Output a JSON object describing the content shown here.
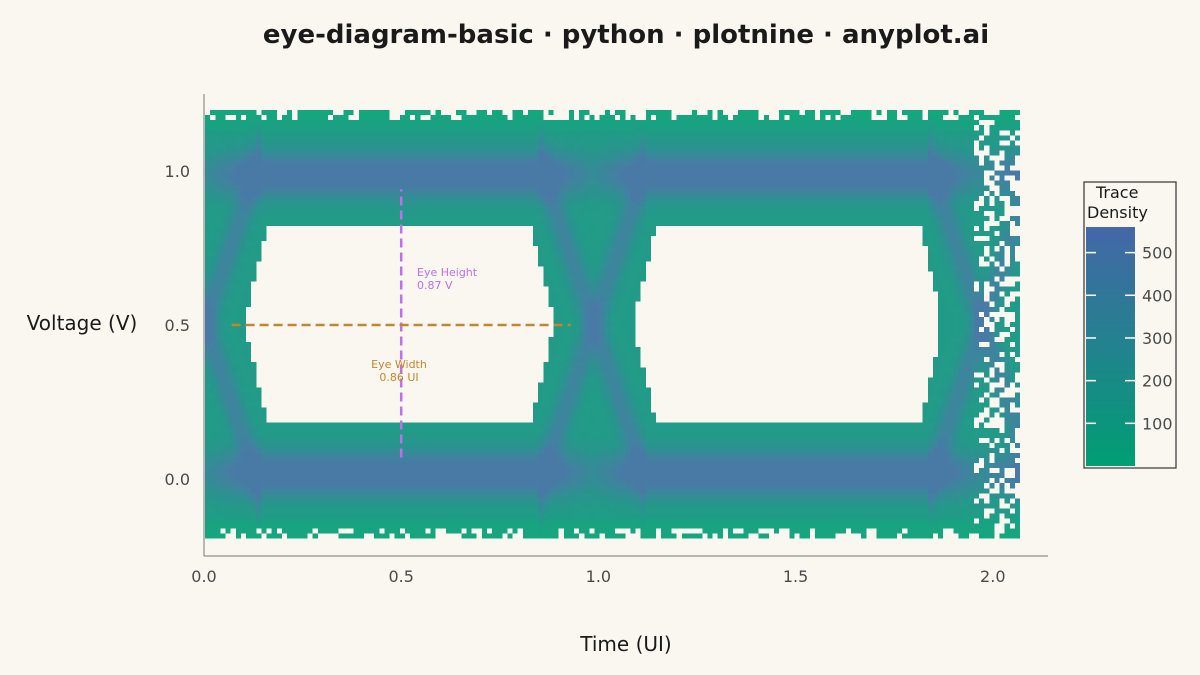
{
  "chart_data": {
    "type": "heatmap",
    "title": "eye-diagram-basic · python · plotnine · anyplot.ai",
    "xlabel": "Time (UI)",
    "ylabel": "Voltage (V)",
    "xlim": [
      0.0,
      2.14
    ],
    "ylim": [
      -0.25,
      1.25
    ],
    "x_ticks": [
      "0.0",
      "0.5",
      "1.0",
      "1.5",
      "2.0"
    ],
    "y_ticks": [
      "0.0",
      "0.5",
      "1.0"
    ],
    "x_tick_values": [
      0.0,
      0.5,
      1.0,
      1.5,
      2.0
    ],
    "y_tick_values": [
      0.0,
      0.5,
      1.0
    ],
    "grid": false,
    "legend": {
      "title_line1": "Trace",
      "title_line2": "Density",
      "placement": "right",
      "ticks": [
        "100",
        "200",
        "300",
        "400",
        "500"
      ],
      "tick_values": [
        100,
        200,
        300,
        400,
        500
      ],
      "range": [
        0,
        560
      ],
      "color_low": "#009e73",
      "color_high": "#4467a8"
    },
    "signal": {
      "high_level": 1.0,
      "low_level": 0.0,
      "noise_sigma": 0.05,
      "eye_centers": [
        0.5,
        1.5
      ],
      "crossings": [
        0.0,
        1.0,
        2.0
      ]
    },
    "annotations": [
      {
        "name": "eye-height",
        "line1": "Eye Height",
        "line2": "0.87 V",
        "x": 0.5,
        "y_start": 0.07,
        "y_end": 0.94,
        "color": "#bf6fe8"
      },
      {
        "name": "eye-width",
        "line1": "Eye Width",
        "line2": "0.86 UI",
        "y": 0.5,
        "x_start": 0.07,
        "x_end": 0.93,
        "color": "#c0872e"
      }
    ],
    "colors": {
      "background": "#faf7f1",
      "eye_interior": "#faf7f1"
    }
  }
}
